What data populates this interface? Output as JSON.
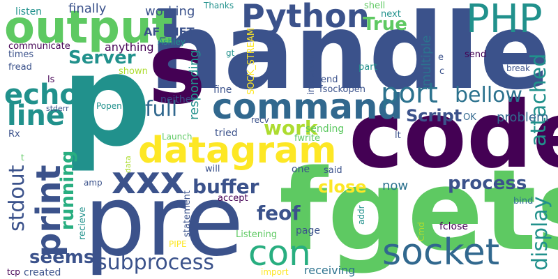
{
  "palette": {
    "dark-purple": "#440154",
    "indigo": "#3b528b",
    "slate-blue": "#31688e",
    "teal-blue": "#2c728e",
    "teal": "#21918c",
    "sea-green": "#28ae80",
    "green": "#5ec962",
    "lime": "#addc30",
    "yellow": "#fde725"
  },
  "words": [
    {
      "text": "p",
      "color": "teal"
    },
    {
      "text": "handle",
      "color": "indigo"
    },
    {
      "text": "code",
      "color": "dark-purple"
    },
    {
      "text": "fgets",
      "color": "green"
    },
    {
      "text": "pre",
      "color": "indigo"
    },
    {
      "text": "s",
      "color": "dark-purple"
    },
    {
      "text": "output",
      "color": "green"
    },
    {
      "text": "Python",
      "color": "indigo"
    },
    {
      "text": "PHP",
      "color": "teal"
    },
    {
      "text": "command",
      "color": "slate-blue"
    },
    {
      "text": "datagram",
      "color": "yellow"
    },
    {
      "text": "xxx",
      "color": "indigo"
    },
    {
      "text": "socket",
      "color": "slate-blue"
    },
    {
      "text": "con",
      "color": "sea-green"
    },
    {
      "text": "print",
      "color": "indigo"
    },
    {
      "text": "echo",
      "color": "teal"
    },
    {
      "text": "line",
      "color": "teal"
    },
    {
      "text": "port",
      "color": "teal-blue"
    },
    {
      "text": "subprocess",
      "color": "indigo"
    },
    {
      "text": "stdout",
      "color": "indigo"
    },
    {
      "text": "display",
      "color": "teal"
    },
    {
      "text": "attached",
      "color": "teal"
    },
    {
      "text": "bellow",
      "color": "teal-blue"
    },
    {
      "text": "full",
      "color": "slate-blue"
    },
    {
      "text": "Server",
      "color": "teal"
    },
    {
      "text": "buffer",
      "color": "indigo"
    },
    {
      "text": "work",
      "color": "lime"
    },
    {
      "text": "feof",
      "color": "indigo"
    },
    {
      "text": "running",
      "color": "sea-green"
    },
    {
      "text": "seems",
      "color": "indigo"
    },
    {
      "text": "close",
      "color": "yellow"
    },
    {
      "text": "process",
      "color": "indigo"
    },
    {
      "text": "Script",
      "color": "indigo"
    },
    {
      "text": "True",
      "color": "green"
    },
    {
      "text": "finally",
      "color": "indigo"
    },
    {
      "text": "working",
      "color": "indigo"
    },
    {
      "text": "responding",
      "color": "teal"
    },
    {
      "text": "multiple",
      "color": "teal-blue"
    },
    {
      "text": "problem",
      "color": "slate-blue"
    },
    {
      "text": "now",
      "color": "teal-blue"
    },
    {
      "text": "receiving",
      "color": "teal-blue"
    },
    {
      "text": "AF_INET",
      "color": "indigo"
    },
    {
      "text": "anything",
      "color": "dark-purple"
    },
    {
      "text": "listen",
      "color": "teal"
    },
    {
      "text": "communicate",
      "color": "dark-purple"
    },
    {
      "text": "times",
      "color": "indigo"
    },
    {
      "text": "fread",
      "color": "indigo"
    },
    {
      "text": "ls",
      "color": "dark-purple"
    },
    {
      "text": "shown",
      "color": "lime"
    },
    {
      "text": "neither",
      "color": "indigo"
    },
    {
      "text": "fine",
      "color": "indigo"
    },
    {
      "text": "end",
      "color": "indigo"
    },
    {
      "text": "important",
      "color": "indigo"
    },
    {
      "text": "part",
      "color": "teal"
    },
    {
      "text": "next",
      "color": "teal"
    },
    {
      "text": "shell",
      "color": "green"
    },
    {
      "text": "Thanks",
      "color": "teal"
    },
    {
      "text": "SOCK_STREAM",
      "color": "yellow"
    },
    {
      "text": "Ashley",
      "color": "teal"
    },
    {
      "text": "gt",
      "color": "teal"
    },
    {
      "text": "fsockopen",
      "color": "indigo"
    },
    {
      "text": "e",
      "color": "indigo"
    },
    {
      "text": "c",
      "color": "indigo"
    },
    {
      "text": "send",
      "color": "dark-purple"
    },
    {
      "text": "break",
      "color": "indigo"
    },
    {
      "text": "OK",
      "color": "slate-blue"
    },
    {
      "text": "lt",
      "color": "indigo"
    },
    {
      "text": "Popen",
      "color": "teal"
    },
    {
      "text": "stderr",
      "color": "indigo"
    },
    {
      "text": "Rx",
      "color": "indigo"
    },
    {
      "text": "tried",
      "color": "indigo"
    },
    {
      "text": "recv",
      "color": "indigo"
    },
    {
      "text": "sending",
      "color": "green"
    },
    {
      "text": "fwrite",
      "color": "green"
    },
    {
      "text": "Launch",
      "color": "green"
    },
    {
      "text": "data",
      "color": "lime"
    },
    {
      "text": "will",
      "color": "indigo"
    },
    {
      "text": "one",
      "color": "indigo"
    },
    {
      "text": "said",
      "color": "indigo"
    },
    {
      "text": "amp",
      "color": "indigo"
    },
    {
      "text": "accept",
      "color": "dark-purple"
    },
    {
      "text": "statement",
      "color": "indigo"
    },
    {
      "text": "recieve",
      "color": "teal"
    },
    {
      "text": "bind",
      "color": "teal-blue"
    },
    {
      "text": "addr",
      "color": "teal"
    },
    {
      "text": "Listening",
      "color": "green"
    },
    {
      "text": "PIPE",
      "color": "yellow"
    },
    {
      "text": "page",
      "color": "indigo"
    },
    {
      "text": "Cmd",
      "color": "lime"
    },
    {
      "text": "fclose",
      "color": "dark-purple"
    },
    {
      "text": "t",
      "color": "green"
    },
    {
      "text": "import",
      "color": "yellow"
    },
    {
      "text": "created",
      "color": "indigo"
    },
    {
      "text": "tcp",
      "color": "dark-purple"
    }
  ]
}
